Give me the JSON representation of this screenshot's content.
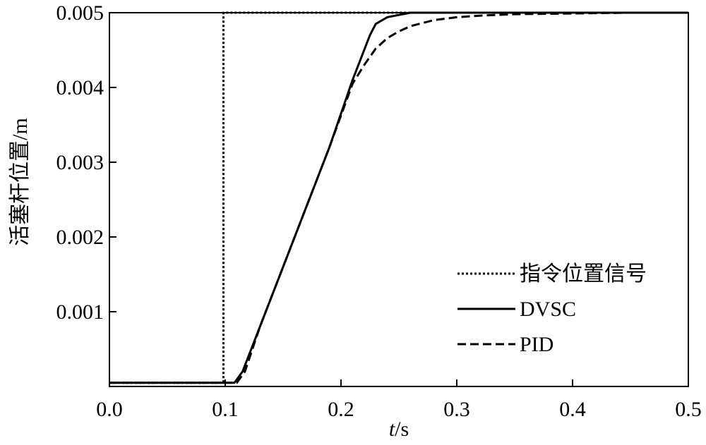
{
  "chart_data": {
    "type": "line",
    "title": "",
    "xlabel": {
      "italic": "t",
      "rest": "/s"
    },
    "ylabel": "活塞杆位置/m",
    "xlim": [
      0.0,
      0.5
    ],
    "ylim": [
      0.0,
      0.005
    ],
    "xticks": [
      0.0,
      0.1,
      0.2,
      0.3,
      0.4,
      0.5
    ],
    "xtick_labels": [
      "0.0",
      "0.1",
      "0.2",
      "0.3",
      "0.4",
      "0.5"
    ],
    "yticks": [
      0.001,
      0.002,
      0.003,
      0.004,
      0.005
    ],
    "ytick_labels": [
      "0.001",
      "0.002",
      "0.003",
      "0.004",
      "0.005"
    ],
    "grid": false,
    "legend_position": "bottom-right",
    "series": [
      {
        "name": "指令位置信号",
        "style": "dotted",
        "x": [
          0.0,
          0.0985,
          0.0985,
          0.5
        ],
        "y": [
          5e-05,
          5e-05,
          0.005,
          0.005
        ]
      },
      {
        "name": "DVSC",
        "style": "solid",
        "x": [
          0.0,
          0.1,
          0.108,
          0.115,
          0.13,
          0.15,
          0.17,
          0.19,
          0.21,
          0.22,
          0.225,
          0.23,
          0.24,
          0.25,
          0.26,
          0.28,
          0.3,
          0.35,
          0.4,
          0.45,
          0.5
        ],
        "y": [
          5e-05,
          5e-05,
          5e-05,
          0.0002,
          0.0008,
          0.0016,
          0.0024,
          0.0032,
          0.0041,
          0.0045,
          0.0047,
          0.00485,
          0.00494,
          0.00497,
          0.005,
          0.005,
          0.005,
          0.005,
          0.005,
          0.005,
          0.005
        ]
      },
      {
        "name": "PID",
        "style": "dashed",
        "x": [
          0.0,
          0.1,
          0.11,
          0.117,
          0.13,
          0.15,
          0.17,
          0.19,
          0.21,
          0.22,
          0.23,
          0.24,
          0.25,
          0.26,
          0.28,
          0.3,
          0.32,
          0.35,
          0.4,
          0.45,
          0.5
        ],
        "y": [
          5e-05,
          5e-05,
          5e-05,
          0.0002,
          0.0008,
          0.0016,
          0.0024,
          0.0032,
          0.00405,
          0.0043,
          0.00452,
          0.00466,
          0.00475,
          0.00482,
          0.0049,
          0.00494,
          0.00496,
          0.00498,
          0.00499,
          0.005,
          0.005
        ]
      }
    ]
  }
}
